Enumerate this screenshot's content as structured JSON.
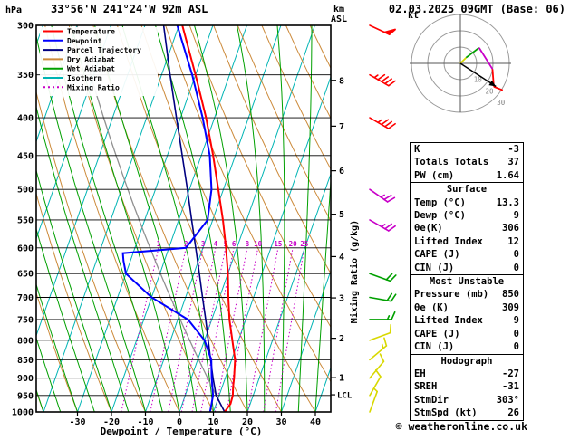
{
  "header": {
    "pressure_axis_unit": "hPa",
    "station": "33°56'N 241°24'W 92m ASL",
    "altitude_axis_unit": "km",
    "altitude_axis_ref": "ASL",
    "datetime": "02.03.2025 09GMT (Base: 06)"
  },
  "legend": [
    {
      "label": "Temperature",
      "color": "#ff0000",
      "dash": ""
    },
    {
      "label": "Dewpoint",
      "color": "#0000ff",
      "dash": ""
    },
    {
      "label": "Parcel Trajectory",
      "color": "#000080",
      "dash": ""
    },
    {
      "label": "Dry Adiabat",
      "color": "#cc8a3a",
      "dash": ""
    },
    {
      "label": "Wet Adiabat",
      "color": "#00a000",
      "dash": ""
    },
    {
      "label": "Isotherm",
      "color": "#00b4b4",
      "dash": ""
    },
    {
      "label": "Mixing Ratio",
      "color": "#c800c8",
      "dash": "2,3"
    }
  ],
  "axes": {
    "pressure_ticks_hpa": [
      300,
      350,
      400,
      450,
      500,
      550,
      600,
      650,
      700,
      750,
      800,
      850,
      900,
      950,
      1000
    ],
    "temp_ticks_c": [
      -30,
      -20,
      -10,
      0,
      10,
      20,
      30,
      40
    ],
    "km_ticks": [
      1,
      2,
      3,
      4,
      5,
      6,
      7,
      8
    ],
    "x_title": "Dewpoint / Temperature (°C)",
    "right_axis_title": "Mixing Ratio (g/kg)",
    "lcl_label": "LCL"
  },
  "hodograph": {
    "unit_label": "kt",
    "rings_kt": [
      10,
      20,
      30
    ],
    "ring_labels": [
      "10",
      "20",
      "30"
    ],
    "storm_dir_deg": 303,
    "storm_speed_kt": 26,
    "trace_uv_kt": [
      [
        0,
        0
      ],
      [
        3.5,
        3.5
      ],
      [
        11.5,
        9.6
      ],
      [
        19.7,
        -3.5
      ],
      [
        20.5,
        -14.3
      ],
      [
        26,
        -16.5
      ]
    ],
    "trace_colors": [
      "#d8d800",
      "#00a000",
      "#c800c8",
      "#ff0000",
      "#ff0000"
    ]
  },
  "panel": {
    "top_rows": [
      {
        "label": "K",
        "value": "-3"
      },
      {
        "label": "Totals Totals",
        "value": "37"
      },
      {
        "label": "PW (cm)",
        "value": "1.64"
      }
    ],
    "sections": [
      {
        "title": "Surface",
        "rows": [
          {
            "label": "Temp (°C)",
            "value": "13.3"
          },
          {
            "label": "Dewp (°C)",
            "value": "9"
          },
          {
            "label": "θe(K)",
            "value": "306"
          },
          {
            "label": "Lifted Index",
            "value": "12"
          },
          {
            "label": "CAPE (J)",
            "value": "0"
          },
          {
            "label": "CIN (J)",
            "value": "0"
          }
        ]
      },
      {
        "title": "Most Unstable",
        "rows": [
          {
            "label": "Pressure (mb)",
            "value": "850"
          },
          {
            "label": "θe (K)",
            "value": "309"
          },
          {
            "label": "Lifted Index",
            "value": "9"
          },
          {
            "label": "CAPE (J)",
            "value": "0"
          },
          {
            "label": "CIN (J)",
            "value": "0"
          }
        ]
      },
      {
        "title": "Hodograph",
        "rows": [
          {
            "label": "EH",
            "value": "-27"
          },
          {
            "label": "SREH",
            "value": "-31"
          },
          {
            "label": "StmDir",
            "value": "303°"
          },
          {
            "label": "StmSpd (kt)",
            "value": "26"
          }
        ]
      }
    ]
  },
  "footer": {
    "copyright": "© weatheronline.co.uk"
  },
  "chart_data": {
    "type": "skewt-log-p",
    "pressure_range_hpa": [
      300,
      1000
    ],
    "temp_range_c": [
      -30,
      40
    ],
    "isotherm_step_c": 10,
    "dry_adiabat_step_c": 10,
    "wet_adiabat_step_c": 5,
    "mixing_ratio_lines_gkg": [
      1,
      2,
      3,
      4,
      5,
      6,
      8,
      10,
      15,
      20,
      25
    ],
    "lcl_hpa": 948,
    "surface_parcel_theta_c": 13.3,
    "temperature_profile_p_t": [
      [
        1000,
        13.3
      ],
      [
        975,
        14.2
      ],
      [
        950,
        14.0
      ],
      [
        925,
        13.2
      ],
      [
        900,
        12.6
      ],
      [
        850,
        11.0
      ],
      [
        800,
        8.2
      ],
      [
        750,
        5.2
      ],
      [
        700,
        2.6
      ],
      [
        650,
        0.0
      ],
      [
        600,
        -3.2
      ],
      [
        550,
        -7.0
      ],
      [
        500,
        -11.5
      ],
      [
        450,
        -16.5
      ],
      [
        400,
        -22.5
      ],
      [
        350,
        -30.0
      ],
      [
        300,
        -39.0
      ]
    ],
    "dewpoint_profile_p_t": [
      [
        1000,
        9.0
      ],
      [
        950,
        8.2
      ],
      [
        900,
        6.0
      ],
      [
        850,
        4.0
      ],
      [
        800,
        0.0
      ],
      [
        750,
        -7.0
      ],
      [
        700,
        -20.0
      ],
      [
        650,
        -30.0
      ],
      [
        625,
        -32.0
      ],
      [
        610,
        -33.0
      ],
      [
        600,
        -15.0
      ],
      [
        550,
        -11.5
      ],
      [
        500,
        -13.5
      ],
      [
        450,
        -17.5
      ],
      [
        400,
        -23.5
      ],
      [
        350,
        -31.0
      ],
      [
        300,
        -40.5
      ]
    ],
    "parcel_profile_p_t": [
      [
        1000,
        13.3
      ],
      [
        950,
        9.1
      ],
      [
        900,
        6.4
      ],
      [
        850,
        3.8
      ],
      [
        800,
        1.1
      ],
      [
        750,
        -1.8
      ],
      [
        700,
        -5.0
      ],
      [
        650,
        -8.4
      ],
      [
        600,
        -12.1
      ],
      [
        550,
        -16.2
      ],
      [
        500,
        -20.6
      ],
      [
        450,
        -25.6
      ],
      [
        400,
        -31.2
      ],
      [
        350,
        -37.5
      ],
      [
        300,
        -44.5
      ]
    ],
    "wind_barbs": [
      {
        "p": 1000,
        "dir": 200,
        "spd": 5,
        "color": "#d8d800"
      },
      {
        "p": 950,
        "dir": 210,
        "spd": 10,
        "color": "#d8d800"
      },
      {
        "p": 900,
        "dir": 220,
        "spd": 10,
        "color": "#d8d800"
      },
      {
        "p": 850,
        "dir": 230,
        "spd": 15,
        "color": "#d8d800"
      },
      {
        "p": 800,
        "dir": 250,
        "spd": 10,
        "color": "#d8d800"
      },
      {
        "p": 750,
        "dir": 270,
        "spd": 15,
        "color": "#00a000"
      },
      {
        "p": 700,
        "dir": 280,
        "spd": 20,
        "color": "#00a000"
      },
      {
        "p": 650,
        "dir": 290,
        "spd": 20,
        "color": "#00a000"
      },
      {
        "p": 550,
        "dir": 300,
        "spd": 25,
        "color": "#c800c8"
      },
      {
        "p": 500,
        "dir": 305,
        "spd": 25,
        "color": "#c800c8"
      },
      {
        "p": 400,
        "dir": 300,
        "spd": 35,
        "color": "#ff0000"
      },
      {
        "p": 350,
        "dir": 300,
        "spd": 45,
        "color": "#ff0000"
      },
      {
        "p": 300,
        "dir": 295,
        "spd": 50,
        "color": "#ff0000"
      }
    ],
    "colors": {
      "temperature": "#ff0000",
      "dewpoint": "#0000ff",
      "parcel": "#000080",
      "dry_adiabat": "#cc8a3a",
      "wet_adiabat": "#00a000",
      "isotherm": "#00b4b4",
      "mixing_ratio": "#c800c8",
      "grid": "#000000",
      "surface_adiabat_gray": "#909090"
    }
  }
}
